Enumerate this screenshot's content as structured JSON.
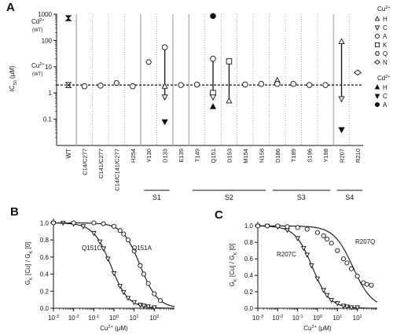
{
  "chart_data": [
    {
      "panel": "A",
      "type": "scatter",
      "ylabel": "IC50 (μM)",
      "yscale": "log",
      "ylim": [
        0.01,
        1000
      ],
      "yticks": [
        "0.1",
        "1",
        "10",
        "100",
        "1000"
      ],
      "categories": [
        "WT",
        "C14/C277",
        "C141/C277",
        "C14/C141/C277",
        "H254",
        "Y130",
        "D133",
        "E139",
        "T149",
        "Q151",
        "D153",
        "M154",
        "N158",
        "D186",
        "T189",
        "S196",
        "Y198",
        "R207",
        "R210"
      ],
      "groups": [
        {
          "label": "S1",
          "from": "Y130",
          "to": "D133"
        },
        {
          "label": "S2",
          "from": "T149",
          "to": "N158"
        },
        {
          "label": "S3",
          "from": "D186",
          "to": "Y198"
        },
        {
          "label": "S4",
          "from": "R207",
          "to": "R210"
        }
      ],
      "reference_lines": [
        {
          "label": "Cd2+ (WT)",
          "value": 700
        },
        {
          "label": "Cu2+ (WT)",
          "value": 2
        }
      ],
      "cu_legend_title": "Cu2+",
      "cd_legend_title": "Cd2+",
      "legend_cu": [
        {
          "code": "H",
          "symbol": "triangle-up"
        },
        {
          "code": "C",
          "symbol": "triangle-down"
        },
        {
          "code": "A",
          "symbol": "circle"
        },
        {
          "code": "K",
          "symbol": "square"
        },
        {
          "code": "Q",
          "symbol": "hexagon"
        },
        {
          "code": "N",
          "symbol": "diamond"
        }
      ],
      "legend_cd": [
        {
          "code": "H",
          "symbol": "triangle-up-filled"
        },
        {
          "code": "C",
          "symbol": "triangle-down-filled"
        },
        {
          "code": "A",
          "symbol": "circle-filled"
        }
      ],
      "points": [
        {
          "cat": "WT",
          "y": 2.0,
          "symbol": "bowtie"
        },
        {
          "cat": "WT",
          "y": 700,
          "symbol": "bowtie-filled"
        },
        {
          "cat": "C14/C277",
          "y": 1.8,
          "symbol": "circle"
        },
        {
          "cat": "C141/C277",
          "y": 1.9,
          "symbol": "circle"
        },
        {
          "cat": "C14/C141/C277",
          "y": 2.4,
          "symbol": "hexagon"
        },
        {
          "cat": "H254",
          "y": 1.8,
          "symbol": "circle"
        },
        {
          "cat": "Y130",
          "y": 15,
          "symbol": "hexagon"
        },
        {
          "cat": "D133",
          "y": 55,
          "symbol": "circle"
        },
        {
          "cat": "D133",
          "y": 1.8,
          "symbol": "triangle-up"
        },
        {
          "cat": "D133",
          "y": 0.7,
          "symbol": "triangle-down"
        },
        {
          "cat": "D133",
          "y": 0.08,
          "symbol": "triangle-down-filled"
        },
        {
          "cat": "E139",
          "y": 2.0,
          "symbol": "circle"
        },
        {
          "cat": "T149",
          "y": 2.1,
          "symbol": "circle"
        },
        {
          "cat": "Q151",
          "y": 850,
          "symbol": "circle-filled"
        },
        {
          "cat": "Q151",
          "y": 20,
          "symbol": "circle"
        },
        {
          "cat": "Q151",
          "y": 1.0,
          "symbol": "square"
        },
        {
          "cat": "Q151",
          "y": 0.7,
          "symbol": "triangle-down"
        },
        {
          "cat": "Q151",
          "y": 0.3,
          "symbol": "triangle-up-filled"
        },
        {
          "cat": "D153",
          "y": 16,
          "symbol": "square"
        },
        {
          "cat": "D153",
          "y": 0.5,
          "symbol": "triangle-up"
        },
        {
          "cat": "M154",
          "y": 2.1,
          "symbol": "circle"
        },
        {
          "cat": "N158",
          "y": 2.2,
          "symbol": "circle"
        },
        {
          "cat": "D186",
          "y": 3.0,
          "symbol": "triangle-up"
        },
        {
          "cat": "D186",
          "y": 2.2,
          "symbol": "circle"
        },
        {
          "cat": "T189",
          "y": 2.2,
          "symbol": "circle"
        },
        {
          "cat": "S196",
          "y": 2.0,
          "symbol": "circle"
        },
        {
          "cat": "Y198",
          "y": 2.0,
          "symbol": "circle"
        },
        {
          "cat": "R207",
          "y": 90,
          "symbol": "triangle-up"
        },
        {
          "cat": "R207",
          "y": 0.6,
          "symbol": "triangle-down"
        },
        {
          "cat": "R207",
          "y": 0.04,
          "symbol": "triangle-down-filled"
        },
        {
          "cat": "R210",
          "y": 6,
          "symbol": "diamond"
        }
      ],
      "vertical_bars": [
        {
          "cat": "D133",
          "from": 0.7,
          "to": 55
        },
        {
          "cat": "Q151",
          "from": 0.7,
          "to": 20
        },
        {
          "cat": "D153",
          "from": 0.5,
          "to": 16
        },
        {
          "cat": "R207",
          "from": 0.6,
          "to": 90
        }
      ]
    },
    {
      "panel": "B",
      "type": "line",
      "xscale": "log",
      "xlim": [
        0.001,
        1000
      ],
      "ylim": [
        0,
        1.05
      ],
      "xlabel": "Cu2+ (μM)",
      "ylabel": "GK [Cu] / GK [0]",
      "xticks": [
        "10-3",
        "10-2",
        "10-1",
        "100",
        "101",
        "102"
      ],
      "yticks": [
        "0.0",
        "0.2",
        "0.4",
        "0.6",
        "0.8",
        "1.0"
      ],
      "conditions": [
        "0 Ca2+",
        "+240 mV"
      ],
      "series": [
        {
          "name": "Q151C",
          "marker": "triangle-down",
          "ic50": 0.7,
          "hill": 1.0,
          "x": [
            0.001,
            0.003,
            0.01,
            0.03,
            0.1,
            0.2,
            0.3,
            0.5,
            1,
            2,
            3,
            5,
            10,
            20,
            30,
            50,
            100
          ],
          "y": [
            1.0,
            1.0,
            0.99,
            0.96,
            0.88,
            0.78,
            0.7,
            0.58,
            0.41,
            0.26,
            0.19,
            0.12,
            0.07,
            0.04,
            0.03,
            0.02,
            0.01
          ]
        },
        {
          "name": "Q151A",
          "marker": "circle",
          "ic50": 20,
          "hill": 1.0,
          "x": [
            0.001,
            0.01,
            0.1,
            0.3,
            1,
            2,
            3,
            5,
            10,
            20,
            30,
            50,
            100,
            200
          ],
          "y": [
            1.0,
            1.0,
            1.0,
            0.99,
            0.96,
            0.91,
            0.87,
            0.8,
            0.67,
            0.5,
            0.4,
            0.29,
            0.17,
            0.09
          ]
        }
      ]
    },
    {
      "panel": "C",
      "type": "line",
      "xscale": "log",
      "xlim": [
        0.001,
        1000
      ],
      "ylim": [
        0,
        1.05
      ],
      "xlabel": "Cu2+ (μM)",
      "ylabel": "GK [Cu] / GK [0]",
      "xticks": [
        "10-3",
        "10-2",
        "10-1",
        "100",
        "101",
        "102"
      ],
      "yticks": [
        "0.0",
        "0.2",
        "0.4",
        "0.6",
        "0.8",
        "1.0"
      ],
      "conditions": [
        "0 Ca2+",
        "+180 mV"
      ],
      "series": [
        {
          "name": "R207C",
          "marker": "triangle-down",
          "ic50": 0.55,
          "hill": 1.0,
          "x": [
            0.001,
            0.003,
            0.01,
            0.03,
            0.1,
            0.2,
            0.3,
            0.5,
            1,
            2,
            3,
            5,
            10,
            20,
            30,
            50,
            100
          ],
          "y": [
            1.0,
            1.0,
            0.99,
            0.95,
            0.85,
            0.73,
            0.65,
            0.52,
            0.36,
            0.22,
            0.16,
            0.1,
            0.06,
            0.03,
            0.02,
            0.01,
            0.01
          ]
        },
        {
          "name": "R207Q",
          "marker": "circle",
          "ic50": 60,
          "hill": 0.9,
          "x": [
            0.001,
            0.003,
            0.01,
            0.03,
            0.1,
            0.3,
            1,
            2,
            3,
            5,
            10,
            20,
            30,
            50,
            100,
            200,
            300,
            500
          ],
          "y": [
            1.0,
            1.0,
            1.0,
            0.99,
            0.98,
            0.96,
            0.92,
            0.88,
            0.84,
            0.79,
            0.7,
            0.6,
            0.55,
            0.48,
            0.39,
            0.31,
            0.29,
            0.28
          ]
        }
      ]
    }
  ]
}
